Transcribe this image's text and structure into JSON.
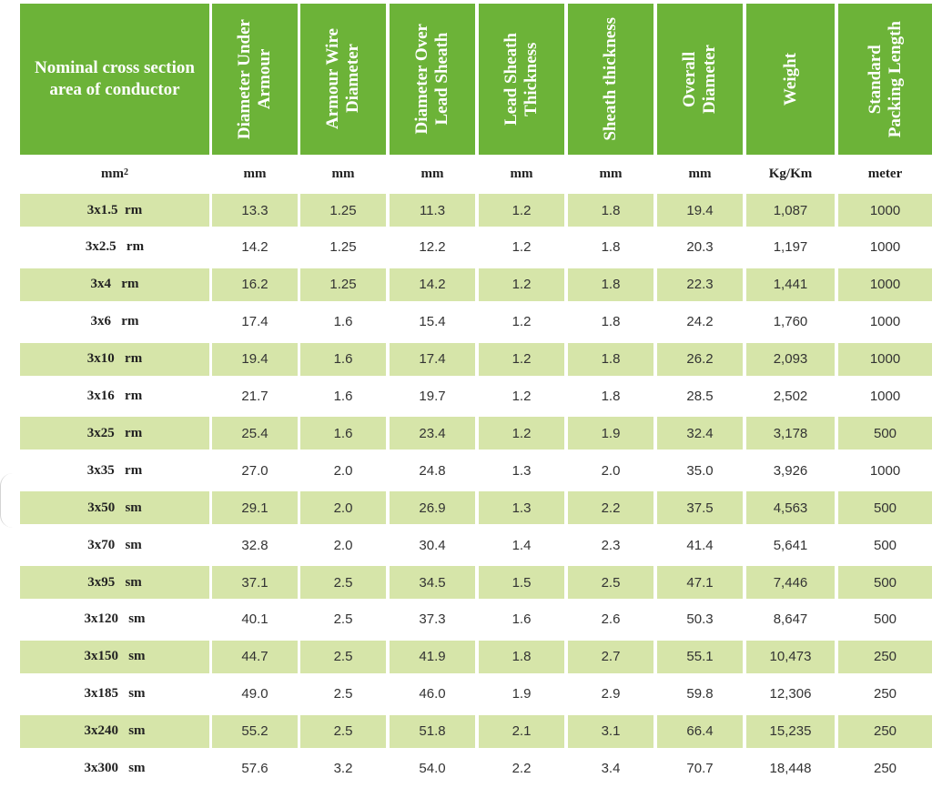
{
  "table": {
    "headers": [
      "Nominal cross section area of conductor",
      "Diameter Under\nArmour",
      "Armour Wire\nDiameter",
      "Diameter Over\nLead Sheath",
      "Lead Sheath\nThickness",
      "Sheath thickness",
      "Overall\nDiameter",
      "Weight",
      "Standard\nPacking Length"
    ],
    "units": [
      "mm",
      "mm",
      "mm",
      "mm",
      "mm",
      "mm",
      "mm",
      "Kg/Km",
      "meter"
    ],
    "unit_superscript": "2",
    "rows": [
      [
        "3x1.5  rm",
        "13.3",
        "1.25",
        "11.3",
        "1.2",
        "1.8",
        "19.4",
        "1,087",
        "1000"
      ],
      [
        "3x2.5   rm",
        "14.2",
        "1.25",
        "12.2",
        "1.2",
        "1.8",
        "20.3",
        "1,197",
        "1000"
      ],
      [
        "3x4   rm",
        "16.2",
        "1.25",
        "14.2",
        "1.2",
        "1.8",
        "22.3",
        "1,441",
        "1000"
      ],
      [
        "3x6   rm",
        "17.4",
        "1.6",
        "15.4",
        "1.2",
        "1.8",
        "24.2",
        "1,760",
        "1000"
      ],
      [
        "3x10   rm",
        "19.4",
        "1.6",
        "17.4",
        "1.2",
        "1.8",
        "26.2",
        "2,093",
        "1000"
      ],
      [
        "3x16   rm",
        "21.7",
        "1.6",
        "19.7",
        "1.2",
        "1.8",
        "28.5",
        "2,502",
        "1000"
      ],
      [
        "3x25   rm",
        "25.4",
        "1.6",
        "23.4",
        "1.2",
        "1.9",
        "32.4",
        "3,178",
        "500"
      ],
      [
        "3x35   rm",
        "27.0",
        "2.0",
        "24.8",
        "1.3",
        "2.0",
        "35.0",
        "3,926",
        "1000"
      ],
      [
        "3x50   sm",
        "29.1",
        "2.0",
        "26.9",
        "1.3",
        "2.2",
        "37.5",
        "4,563",
        "500"
      ],
      [
        "3x70   sm",
        "32.8",
        "2.0",
        "30.4",
        "1.4",
        "2.3",
        "41.4",
        "5,641",
        "500"
      ],
      [
        "3x95   sm",
        "37.1",
        "2.5",
        "34.5",
        "1.5",
        "2.5",
        "47.1",
        "7,446",
        "500"
      ],
      [
        "3x120   sm",
        "40.1",
        "2.5",
        "37.3",
        "1.6",
        "2.6",
        "50.3",
        "8,647",
        "500"
      ],
      [
        "3x150   sm",
        "44.7",
        "2.5",
        "41.9",
        "1.8",
        "2.7",
        "55.1",
        "10,473",
        "250"
      ],
      [
        "3x185   sm",
        "49.0",
        "2.5",
        "46.0",
        "1.9",
        "2.9",
        "59.8",
        "12,306",
        "250"
      ],
      [
        "3x240   sm",
        "55.2",
        "2.5",
        "51.8",
        "2.1",
        "3.1",
        "66.4",
        "15,235",
        "250"
      ],
      [
        "3x300   sm",
        "57.6",
        "3.2",
        "54.0",
        "2.2",
        "3.4",
        "70.7",
        "18,448",
        "250"
      ]
    ]
  },
  "colors": {
    "header_green": "#6cb338",
    "row_shade": "#d6e5a9",
    "header_text": "#ffffff"
  }
}
